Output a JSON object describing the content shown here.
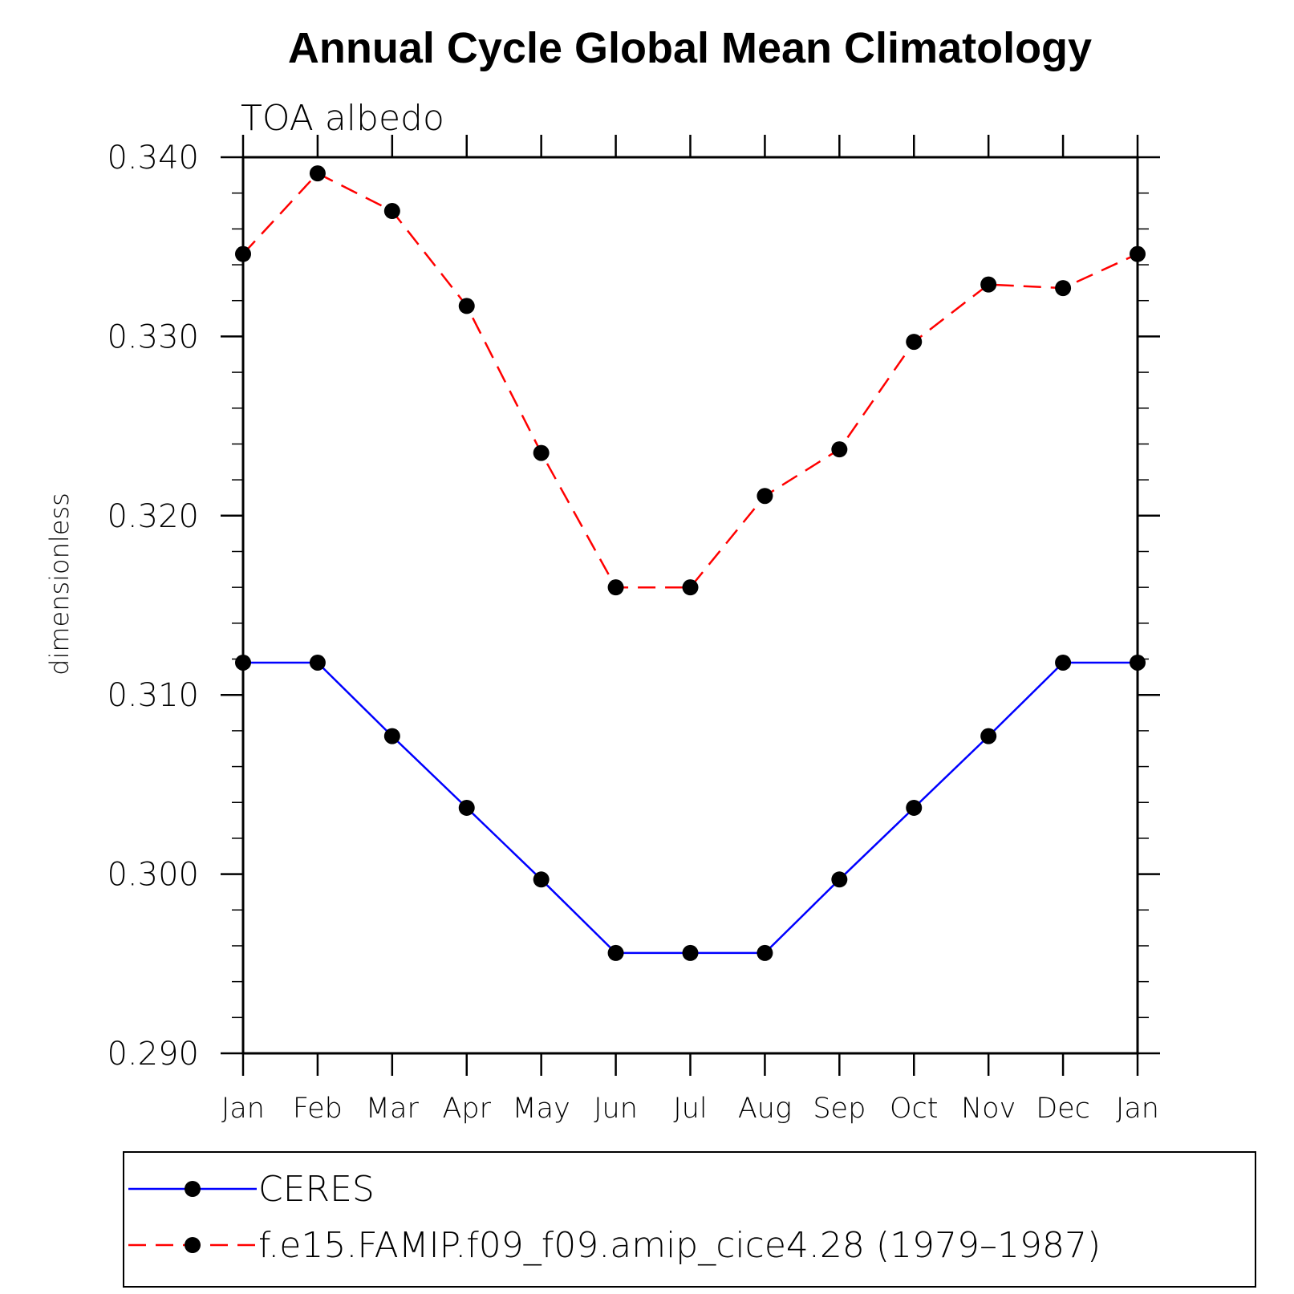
{
  "chart_data": {
    "type": "line",
    "title": "Annual Cycle Global Mean Climatology",
    "subtitle": "TOA albedo",
    "xlabel": "",
    "ylabel": "dimensionless",
    "categories": [
      "Jan",
      "Feb",
      "Mar",
      "Apr",
      "May",
      "Jun",
      "Jul",
      "Aug",
      "Sep",
      "Oct",
      "Nov",
      "Dec",
      "Jan"
    ],
    "ylim": [
      0.29,
      0.34
    ],
    "yticks": [
      "0.290",
      "0.300",
      "0.310",
      "0.320",
      "0.330",
      "0.340"
    ],
    "grid": false,
    "legend_position": "bottom",
    "series": [
      {
        "name": "CERES",
        "color": "#0000ff",
        "line_style": "solid",
        "marker": "filled-circle",
        "values": [
          0.3118,
          0.3118,
          0.3077,
          0.3037,
          0.2997,
          0.2956,
          0.2956,
          0.2956,
          0.2997,
          0.3037,
          0.3077,
          0.3118,
          0.3118
        ]
      },
      {
        "name": "f.e15.FAMIP.f09_f09.amip_cice4.28 (1979–1987)",
        "color": "#ff0000",
        "line_style": "dashed",
        "marker": "filled-circle",
        "values": [
          0.3346,
          0.3391,
          0.337,
          0.3317,
          0.3235,
          0.316,
          0.316,
          0.3211,
          0.3237,
          0.3297,
          0.3329,
          0.3327,
          0.3346
        ]
      }
    ]
  }
}
